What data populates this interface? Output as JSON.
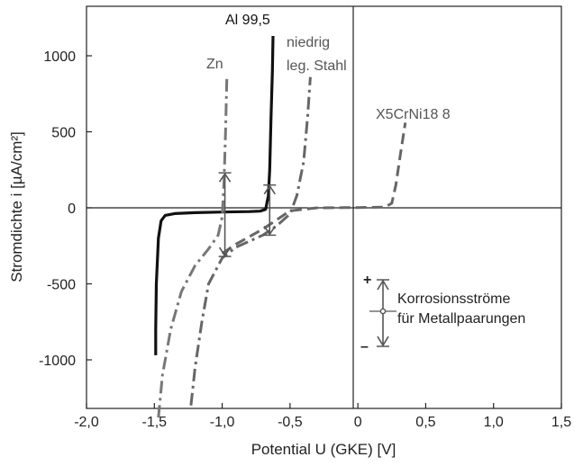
{
  "chart_data": {
    "type": "line",
    "title": "",
    "xlabel": "Potential U (GKE) [V]",
    "ylabel": "Stromdichte i [µA/cm²]",
    "xlim": [
      -2.0,
      1.5
    ],
    "ylim": [
      -1380,
      1400
    ],
    "x_ticks": [
      "-2,0",
      "-1,5",
      "-1,0",
      "-0,5",
      "0",
      "0,5",
      "1,0",
      "1,5"
    ],
    "y_ticks": [
      "1000",
      "500",
      "0",
      "-500",
      "-1000"
    ],
    "grid": false,
    "series": [
      {
        "name": "Al 99,5",
        "color": "#111111",
        "style": "solid",
        "points": [
          [
            -1.49,
            -970
          ],
          [
            -1.49,
            -800
          ],
          [
            -1.485,
            -500
          ],
          [
            -1.47,
            -200
          ],
          [
            -1.45,
            -85
          ],
          [
            -1.42,
            -50
          ],
          [
            -1.35,
            -38
          ],
          [
            -1.2,
            -32
          ],
          [
            -1.0,
            -28
          ],
          [
            -0.8,
            -25
          ],
          [
            -0.72,
            -22
          ],
          [
            -0.68,
            -10
          ],
          [
            -0.66,
            80
          ],
          [
            -0.65,
            250
          ],
          [
            -0.64,
            600
          ],
          [
            -0.63,
            900
          ],
          [
            -0.625,
            1130
          ]
        ]
      },
      {
        "name": "Zn",
        "color": "#777777",
        "style": "dashdot",
        "points": [
          [
            -1.47,
            -1380
          ],
          [
            -1.44,
            -1100
          ],
          [
            -1.38,
            -800
          ],
          [
            -1.3,
            -550
          ],
          [
            -1.2,
            -380
          ],
          [
            -1.1,
            -270
          ],
          [
            -1.03,
            -180
          ],
          [
            -1.0,
            -60
          ],
          [
            -0.985,
            200
          ],
          [
            -0.975,
            500
          ],
          [
            -0.965,
            870
          ]
        ]
      },
      {
        "name": "niedrig leg. Stahl",
        "color": "#666666",
        "style": "dashdot",
        "points": [
          [
            -1.23,
            -1300
          ],
          [
            -1.2,
            -1050
          ],
          [
            -1.15,
            -750
          ],
          [
            -1.1,
            -500
          ],
          [
            -1.0,
            -330
          ],
          [
            -0.9,
            -260
          ],
          [
            -0.8,
            -220
          ],
          [
            -0.7,
            -180
          ],
          [
            -0.6,
            -120
          ],
          [
            -0.5,
            -40
          ],
          [
            -0.45,
            80
          ],
          [
            -0.4,
            300
          ],
          [
            -0.37,
            600
          ],
          [
            -0.35,
            860
          ]
        ]
      },
      {
        "name": "X5CrNi18 8",
        "color": "#666666",
        "style": "dashed",
        "points": [
          [
            -1.0,
            -300
          ],
          [
            -0.9,
            -240
          ],
          [
            -0.8,
            -190
          ],
          [
            -0.7,
            -140
          ],
          [
            -0.6,
            -80
          ],
          [
            -0.5,
            -20
          ],
          [
            -0.3,
            0
          ],
          [
            0.0,
            2
          ],
          [
            0.2,
            5
          ],
          [
            0.25,
            30
          ],
          [
            0.28,
            150
          ],
          [
            0.31,
            330
          ],
          [
            0.35,
            560
          ]
        ]
      }
    ],
    "markers": [
      {
        "x": -0.98,
        "y_top": 230,
        "y_bottom": -320
      },
      {
        "x": -0.65,
        "y_top": 150,
        "y_bottom": -180
      }
    ],
    "legend": {
      "lines": [
        "Korrosionsströme",
        "für Metallpaarungen"
      ],
      "plus": "+",
      "minus": "–",
      "placement": "lower-right"
    }
  }
}
